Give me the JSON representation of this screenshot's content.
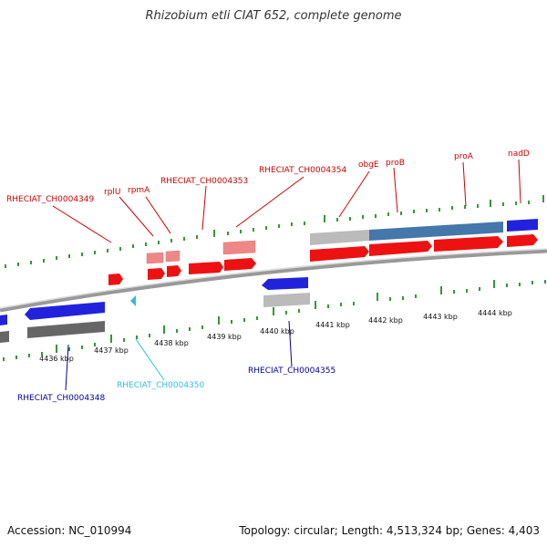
{
  "title": "Rhizobium etli CIAT 652, complete genome",
  "footer": {
    "accession": "Accession: NC_010994",
    "topology": "Topology: circular; Length: 4,513,324 bp; Genes: 4,403"
  },
  "scale_labels": [
    "4436 kbp",
    "4437 kbp",
    "4438 kbp",
    "4439 kbp",
    "4440 kbp",
    "4441 kbp",
    "4442 kbp",
    "4443 kbp",
    "4444 kbp"
  ],
  "gene_labels": {
    "RHECIAT_CH0004349": "RHECIAT_CH0004349",
    "rplU": "rplU",
    "rpmA": "rpmA",
    "RHECIAT_CH0004353": "RHECIAT_CH0004353",
    "RHECIAT_CH0004354": "RHECIAT_CH0004354",
    "obgE": "obgE",
    "proB": "proB",
    "proA": "proA",
    "nadD": "nadD",
    "RHECIAT_CH0004348": "RHECIAT_CH0004348",
    "RHECIAT_CH0004350": "RHECIAT_CH0004350",
    "RHECIAT_CH0004355": "RHECIAT_CH0004355"
  },
  "colors": {
    "forward_gene": "#ee1111",
    "forward_gene_light": "#ee8888",
    "reverse_gene": "#2222dd",
    "rna_gene": "#33bbdd",
    "annotation_blue": "#4477aa",
    "annotation_gray": "#bbbbbb",
    "annotation_dark": "#666666",
    "backbone": "#888888",
    "tick": "#339933",
    "label_red": "#cc0000",
    "label_blue": "#000099",
    "label_cyan": "#33bbdd"
  }
}
